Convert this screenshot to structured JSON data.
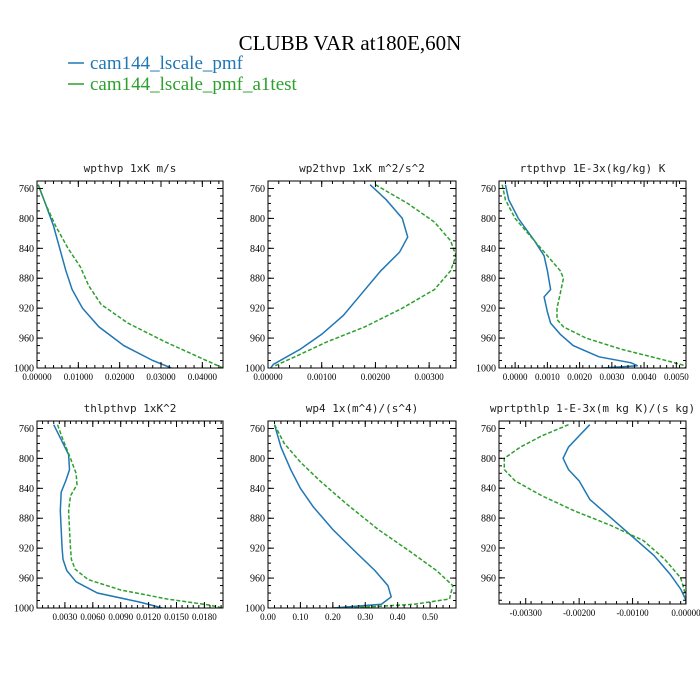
{
  "title": "CLUBB VAR at180E,60N",
  "legend": [
    {
      "label": "cam144_lscale_pmf",
      "color": "#1f77b4"
    },
    {
      "label": "cam144_lscale_pmf_a1test",
      "color": "#2ca02c"
    }
  ],
  "chart_data": [
    {
      "type": "line",
      "title": "wpthvp  1xK m/s",
      "xlim": [
        0,
        0.045
      ],
      "ylim": [
        1000,
        750
      ],
      "xticks": [
        0,
        0.01,
        0.02,
        0.03,
        0.04
      ],
      "xtick_labels": [
        "0.00000",
        "0.01000",
        "0.02000",
        "0.03000",
        "0.04000"
      ],
      "yticks": [
        760,
        800,
        840,
        880,
        920,
        960,
        1000
      ],
      "series": [
        {
          "color": "#1f77b4",
          "points": [
            [
              0.0003,
              755
            ],
            [
              0.002,
              780
            ],
            [
              0.004,
              810
            ],
            [
              0.0055,
              840
            ],
            [
              0.007,
              870
            ],
            [
              0.0085,
              895
            ],
            [
              0.011,
              920
            ],
            [
              0.015,
              945
            ],
            [
              0.021,
              970
            ],
            [
              0.028,
              990
            ],
            [
              0.0325,
              1000
            ]
          ]
        },
        {
          "color": "#2ca02c",
          "dashed": true,
          "points": [
            [
              0.0003,
              755
            ],
            [
              0.002,
              780
            ],
            [
              0.0045,
              810
            ],
            [
              0.0075,
              840
            ],
            [
              0.0105,
              865
            ],
            [
              0.0125,
              890
            ],
            [
              0.0155,
              915
            ],
            [
              0.022,
              940
            ],
            [
              0.031,
              965
            ],
            [
              0.039,
              985
            ],
            [
              0.045,
              1000
            ]
          ]
        }
      ]
    },
    {
      "type": "line",
      "title": "wp2thvp  1xK m^2/s^2",
      "xlim": [
        0,
        0.0035
      ],
      "ylim": [
        1000,
        750
      ],
      "xticks": [
        0,
        0.001,
        0.002,
        0.003
      ],
      "xtick_labels": [
        "0.00000",
        "0.00100",
        "0.00200",
        "0.00300"
      ],
      "yticks": [
        760,
        800,
        840,
        880,
        920,
        960,
        1000
      ],
      "series": [
        {
          "color": "#1f77b4",
          "points": [
            [
              0.0019,
              755
            ],
            [
              0.0022,
              775
            ],
            [
              0.0025,
              800
            ],
            [
              0.0026,
              825
            ],
            [
              0.00245,
              845
            ],
            [
              0.0021,
              870
            ],
            [
              0.00175,
              900
            ],
            [
              0.0014,
              930
            ],
            [
              0.001,
              955
            ],
            [
              0.0006,
              975
            ],
            [
              0.0001,
              995
            ],
            [
              5e-05,
              1000
            ]
          ]
        },
        {
          "color": "#2ca02c",
          "dashed": true,
          "points": [
            [
              0.002,
              755
            ],
            [
              0.0026,
              780
            ],
            [
              0.0031,
              805
            ],
            [
              0.0034,
              830
            ],
            [
              0.0035,
              850
            ],
            [
              0.0034,
              870
            ],
            [
              0.0031,
              895
            ],
            [
              0.0025,
              920
            ],
            [
              0.0018,
              945
            ],
            [
              0.0011,
              965
            ],
            [
              0.0005,
              985
            ],
            [
              0.0001,
              998
            ]
          ]
        }
      ]
    },
    {
      "type": "line",
      "title": "rtpthvp  1E-3x(kg/kg) K",
      "xlim": [
        -0.0005,
        0.0053
      ],
      "ylim": [
        1000,
        750
      ],
      "xticks": [
        0,
        0.001,
        0.002,
        0.003,
        0.004,
        0.005
      ],
      "xtick_labels": [
        "0.0000",
        "0.0010",
        "0.0020",
        "0.0030",
        "0.0040",
        "0.0050"
      ],
      "yticks": [
        760,
        800,
        840,
        880,
        920,
        960,
        1000
      ],
      "series": [
        {
          "color": "#1f77b4",
          "points": [
            [
              -0.0003,
              755
            ],
            [
              -0.0002,
              775
            ],
            [
              0.0001,
              800
            ],
            [
              0.0006,
              830
            ],
            [
              0.0009,
              850
            ],
            [
              0.001,
              870
            ],
            [
              0.0011,
              895
            ],
            [
              0.0009,
              905
            ],
            [
              0.001,
              925
            ],
            [
              0.0011,
              940
            ],
            [
              0.0014,
              955
            ],
            [
              0.0018,
              970
            ],
            [
              0.0026,
              985
            ],
            [
              0.0036,
              993
            ],
            [
              0.0038,
              997
            ],
            [
              0.0027,
              1000
            ]
          ]
        },
        {
          "color": "#2ca02c",
          "dashed": true,
          "points": [
            [
              -0.0004,
              755
            ],
            [
              -0.0003,
              775
            ],
            [
              0.0,
              800
            ],
            [
              0.0005,
              825
            ],
            [
              0.001,
              850
            ],
            [
              0.0014,
              870
            ],
            [
              0.0015,
              880
            ],
            [
              0.0014,
              900
            ],
            [
              0.0013,
              920
            ],
            [
              0.0013,
              935
            ],
            [
              0.0015,
              945
            ],
            [
              0.0022,
              960
            ],
            [
              0.0033,
              975
            ],
            [
              0.0045,
              988
            ],
            [
              0.0052,
              996
            ],
            [
              0.0053,
              1000
            ]
          ]
        }
      ]
    },
    {
      "type": "line",
      "title": "thlpthvp  1xK^2",
      "xlim": [
        0,
        0.02
      ],
      "ylim": [
        1000,
        750
      ],
      "xticks": [
        0.003,
        0.006,
        0.009,
        0.012,
        0.015,
        0.018
      ],
      "xtick_labels": [
        "0.0030",
        "0.0060",
        "0.0090",
        "0.0120",
        "0.0150",
        "0.0180"
      ],
      "yticks": [
        760,
        800,
        840,
        880,
        920,
        960,
        1000
      ],
      "series": [
        {
          "color": "#1f77b4",
          "points": [
            [
              0.0018,
              755
            ],
            [
              0.0026,
              775
            ],
            [
              0.0034,
              795
            ],
            [
              0.0035,
              815
            ],
            [
              0.0031,
              830
            ],
            [
              0.0026,
              845
            ],
            [
              0.0025,
              870
            ],
            [
              0.0026,
              895
            ],
            [
              0.0027,
              920
            ],
            [
              0.0028,
              935
            ],
            [
              0.0032,
              950
            ],
            [
              0.0042,
              965
            ],
            [
              0.0065,
              980
            ],
            [
              0.011,
              992
            ],
            [
              0.0135,
              1000
            ]
          ]
        },
        {
          "color": "#2ca02c",
          "dashed": true,
          "points": [
            [
              0.0022,
              755
            ],
            [
              0.0028,
              775
            ],
            [
              0.0036,
              800
            ],
            [
              0.0042,
              820
            ],
            [
              0.0043,
              835
            ],
            [
              0.0036,
              850
            ],
            [
              0.0034,
              870
            ],
            [
              0.0035,
              895
            ],
            [
              0.0036,
              920
            ],
            [
              0.0037,
              935
            ],
            [
              0.0041,
              948
            ],
            [
              0.0055,
              962
            ],
            [
              0.009,
              976
            ],
            [
              0.014,
              988
            ],
            [
              0.0185,
              996
            ],
            [
              0.02,
              1000
            ]
          ]
        }
      ]
    },
    {
      "type": "line",
      "title": "wp4  1x(m^4)/(s^4)",
      "xlim": [
        0,
        0.58
      ],
      "ylim": [
        1000,
        750
      ],
      "xticks": [
        0,
        0.1,
        0.2,
        0.3,
        0.4,
        0.5
      ],
      "xtick_labels": [
        "0.00",
        "0.10",
        "0.20",
        "0.30",
        "0.40",
        "0.50"
      ],
      "yticks": [
        760,
        800,
        840,
        880,
        920,
        960,
        1000
      ],
      "series": [
        {
          "color": "#1f77b4",
          "points": [
            [
              0.02,
              755
            ],
            [
              0.04,
              785
            ],
            [
              0.07,
              815
            ],
            [
              0.1,
              840
            ],
            [
              0.14,
              865
            ],
            [
              0.2,
              895
            ],
            [
              0.27,
              925
            ],
            [
              0.33,
              950
            ],
            [
              0.37,
              970
            ],
            [
              0.38,
              985
            ],
            [
              0.35,
              995
            ],
            [
              0.2,
              1000
            ]
          ]
        },
        {
          "color": "#2ca02c",
          "dashed": true,
          "points": [
            [
              0.02,
              755
            ],
            [
              0.05,
              780
            ],
            [
              0.1,
              805
            ],
            [
              0.16,
              830
            ],
            [
              0.24,
              860
            ],
            [
              0.34,
              895
            ],
            [
              0.44,
              925
            ],
            [
              0.52,
              950
            ],
            [
              0.57,
              970
            ],
            [
              0.56,
              988
            ],
            [
              0.45,
              995
            ],
            [
              0.25,
              1000
            ]
          ]
        }
      ]
    },
    {
      "type": "line",
      "title": "wprtpthlp  1-E-3x(m kg K)/(s kg)",
      "xlim": [
        -0.0035,
        0.0
      ],
      "ylim": [
        995,
        750
      ],
      "xticks": [
        -0.003,
        -0.002,
        -0.001,
        0.0
      ],
      "xtick_labels": [
        "-0.00300",
        "-0.00200",
        "-0.00100",
        "0.00000"
      ],
      "yticks": [
        760,
        800,
        840,
        880,
        920,
        960,
        1000
      ],
      "series": [
        {
          "color": "#1f77b4",
          "points": [
            [
              -0.0018,
              755
            ],
            [
              -0.002,
              770
            ],
            [
              -0.0022,
              785
            ],
            [
              -0.0023,
              800
            ],
            [
              -0.0022,
              815
            ],
            [
              -0.002,
              830
            ],
            [
              -0.0018,
              855
            ],
            [
              -0.0014,
              880
            ],
            [
              -0.001,
              905
            ],
            [
              -0.0006,
              930
            ],
            [
              -0.0003,
              955
            ],
            [
              -0.0001,
              975
            ],
            [
              0.0,
              990
            ],
            [
              0.0,
              995
            ]
          ]
        },
        {
          "color": "#2ca02c",
          "dashed": true,
          "points": [
            [
              -0.0022,
              755
            ],
            [
              -0.0027,
              770
            ],
            [
              -0.0031,
              785
            ],
            [
              -0.0034,
              800
            ],
            [
              -0.0034,
              815
            ],
            [
              -0.0032,
              830
            ],
            [
              -0.0027,
              850
            ],
            [
              -0.0021,
              870
            ],
            [
              -0.0014,
              890
            ],
            [
              -0.0008,
              910
            ],
            [
              -0.0004,
              935
            ],
            [
              -0.0001,
              960
            ],
            [
              0.0,
              985
            ],
            [
              0.0,
              995
            ]
          ]
        }
      ]
    }
  ]
}
